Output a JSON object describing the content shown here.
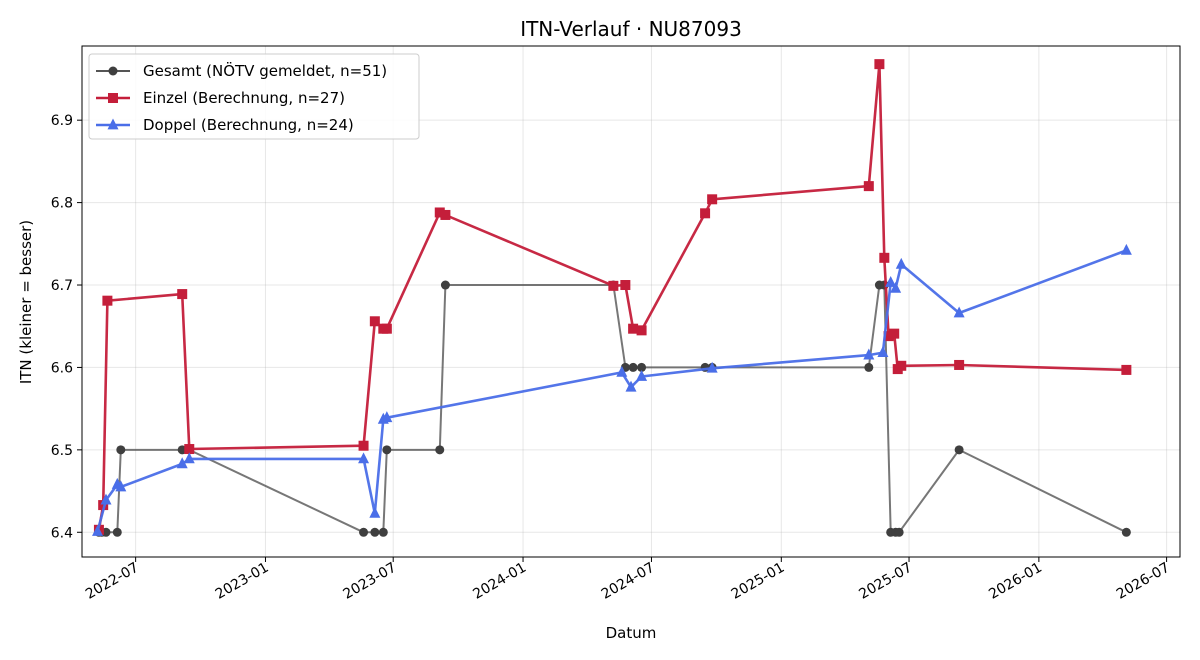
{
  "chart_data": {
    "type": "line",
    "title": "ITN-Verlauf · NU87093",
    "xlabel": "Datum",
    "ylabel": "ITN  (kleiner = besser)",
    "x_axis_type": "date",
    "xlim": [
      "2022-04-16",
      "2026-07-20"
    ],
    "ylim": [
      6.37,
      6.99
    ],
    "x_ticks": [
      "2022-07-01",
      "2023-01-01",
      "2023-07-01",
      "2024-01-01",
      "2024-07-01",
      "2025-01-01",
      "2025-07-01",
      "2026-01-01",
      "2026-07-01"
    ],
    "x_tick_labels": [
      "2022-07",
      "2023-01",
      "2023-07",
      "2024-01",
      "2024-07",
      "2025-01",
      "2025-07",
      "2026-01",
      "2026-07"
    ],
    "y_ticks": [
      6.4,
      6.5,
      6.6,
      6.7,
      6.8,
      6.9
    ],
    "y_tick_labels": [
      "6.4",
      "6.5",
      "6.6",
      "6.7",
      "6.8",
      "6.9"
    ],
    "grid": true,
    "legend_position": "top-left",
    "series": [
      {
        "name": "Gesamt (NÖTV gemeldet, n=51)",
        "color": "#555555",
        "marker": "circle",
        "points": [
          [
            "2022-05-10",
            6.4
          ],
          [
            "2022-05-14",
            6.4
          ],
          [
            "2022-05-20",
            6.4
          ],
          [
            "2022-06-05",
            6.4
          ],
          [
            "2022-06-10",
            6.5
          ],
          [
            "2022-09-05",
            6.5
          ],
          [
            "2022-09-15",
            6.5
          ],
          [
            "2023-05-20",
            6.4
          ],
          [
            "2023-06-05",
            6.4
          ],
          [
            "2023-06-17",
            6.4
          ],
          [
            "2023-06-22",
            6.5
          ],
          [
            "2023-09-05",
            6.5
          ],
          [
            "2023-09-13",
            6.7
          ],
          [
            "2024-05-08",
            6.7
          ],
          [
            "2024-05-25",
            6.6
          ],
          [
            "2024-06-05",
            6.6
          ],
          [
            "2024-06-17",
            6.6
          ],
          [
            "2024-09-15",
            6.6
          ],
          [
            "2024-09-25",
            6.6
          ],
          [
            "2025-05-05",
            6.6
          ],
          [
            "2025-05-20",
            6.7
          ],
          [
            "2025-05-27",
            6.7
          ],
          [
            "2025-06-05",
            6.4
          ],
          [
            "2025-06-12",
            6.4
          ],
          [
            "2025-06-17",
            6.4
          ],
          [
            "2025-09-10",
            6.5
          ],
          [
            "2026-05-05",
            6.4
          ]
        ]
      },
      {
        "name": "Einzel (Berechnung, n=27)",
        "color": "#c41e3a",
        "marker": "square",
        "points": [
          [
            "2022-05-10",
            6.403
          ],
          [
            "2022-05-16",
            6.433
          ],
          [
            "2022-05-22",
            6.681
          ],
          [
            "2022-09-05",
            6.689
          ],
          [
            "2022-09-15",
            6.501
          ],
          [
            "2023-05-20",
            6.505
          ],
          [
            "2023-06-05",
            6.656
          ],
          [
            "2023-06-17",
            6.647
          ],
          [
            "2023-06-22",
            6.647
          ],
          [
            "2023-09-05",
            6.788
          ],
          [
            "2023-09-13",
            6.785
          ],
          [
            "2024-05-08",
            6.699
          ],
          [
            "2024-05-25",
            6.7
          ],
          [
            "2024-06-05",
            6.647
          ],
          [
            "2024-06-17",
            6.645
          ],
          [
            "2024-09-15",
            6.787
          ],
          [
            "2024-09-25",
            6.804
          ],
          [
            "2025-05-05",
            6.82
          ],
          [
            "2025-05-20",
            6.968
          ],
          [
            "2025-05-27",
            6.733
          ],
          [
            "2025-06-02",
            6.638
          ],
          [
            "2025-06-10",
            6.641
          ],
          [
            "2025-06-15",
            6.598
          ],
          [
            "2025-06-20",
            6.602
          ],
          [
            "2025-09-10",
            6.603
          ],
          [
            "2026-05-05",
            6.597
          ]
        ]
      },
      {
        "name": "Doppel (Berechnung, n=24)",
        "color": "#4a6ee8",
        "marker": "triangle",
        "points": [
          [
            "2022-05-08",
            6.401
          ],
          [
            "2022-05-20",
            6.439
          ],
          [
            "2022-06-05",
            6.458
          ],
          [
            "2022-06-10",
            6.455
          ],
          [
            "2022-09-05",
            6.483
          ],
          [
            "2022-09-15",
            6.489
          ],
          [
            "2023-05-20",
            6.489
          ],
          [
            "2023-06-05",
            6.423
          ],
          [
            "2023-06-17",
            6.537
          ],
          [
            "2023-06-22",
            6.539
          ],
          [
            "2024-05-20",
            6.594
          ],
          [
            "2024-06-02",
            6.576
          ],
          [
            "2024-06-17",
            6.589
          ],
          [
            "2024-09-25",
            6.599
          ],
          [
            "2025-05-05",
            6.615
          ],
          [
            "2025-05-25",
            6.618
          ],
          [
            "2025-06-05",
            6.703
          ],
          [
            "2025-06-12",
            6.696
          ],
          [
            "2025-06-20",
            6.725
          ],
          [
            "2025-09-10",
            6.666
          ],
          [
            "2026-05-05",
            6.742
          ]
        ]
      }
    ]
  }
}
